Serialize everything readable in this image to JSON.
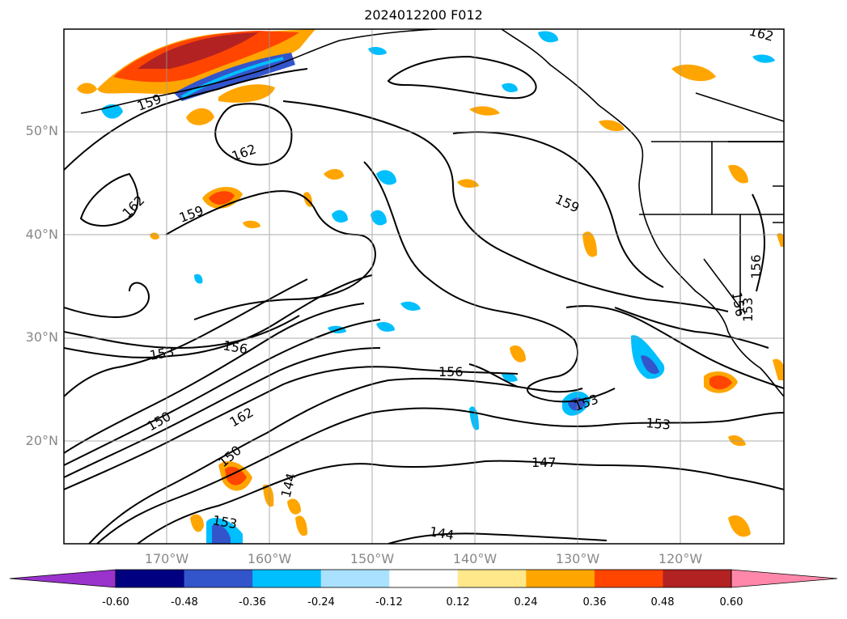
{
  "title": "2024012200 F012",
  "lat_labels": [
    "50°N",
    "40°N",
    "30°N",
    "20°N"
  ],
  "lon_labels": [
    "170°W",
    "160°W",
    "150°W",
    "140°W",
    "130°W",
    "120°W"
  ],
  "contour_labels": [
    "159",
    "162",
    "162",
    "159",
    "159",
    "162",
    "156",
    "153",
    "156",
    "156",
    "150",
    "162",
    "150",
    "153",
    "156",
    "153",
    "153",
    "147",
    "144",
    "144",
    "153",
    "156",
    "153"
  ],
  "colorbar": {
    "colors": [
      "#9933cc",
      "#000080",
      "#3355cc",
      "#00bfff",
      "#aae1ff",
      "#ffffff",
      "#ffe88a",
      "#ffa500",
      "#ff4500",
      "#b22222",
      "#ff88aa"
    ],
    "ticks": [
      "-0.60",
      "-0.48",
      "-0.36",
      "-0.24",
      "-0.12",
      "0.12",
      "0.24",
      "0.36",
      "0.48",
      "0.60"
    ]
  }
}
